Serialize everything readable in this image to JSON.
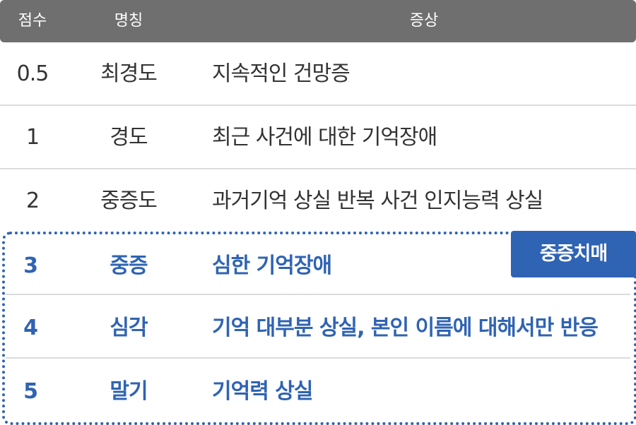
{
  "header": {
    "score": "점수",
    "name": "명칭",
    "symptom": "증상"
  },
  "rows": [
    {
      "score": "0.5",
      "name": "최경도",
      "symptom": "지속적인 건망증"
    },
    {
      "score": "1",
      "name": "경도",
      "symptom": "최근 사건에 대한 기억장애"
    },
    {
      "score": "2",
      "name": "중증도",
      "symptom": "과거기억 상실 반복 사건 인지능력 상실"
    },
    {
      "score": "3",
      "name": "중증",
      "symptom": "심한 기억장애"
    },
    {
      "score": "4",
      "name": "심각",
      "symptom": "기억 대부분 상실, 본인 이름에 대해서만 반응"
    },
    {
      "score": "5",
      "name": "말기",
      "symptom": "기억력 상실"
    }
  ],
  "badge": {
    "label": "중증치매"
  },
  "colors": {
    "header_bg": "#6f6f6f",
    "accent": "#2f63b3",
    "text": "#333333"
  }
}
